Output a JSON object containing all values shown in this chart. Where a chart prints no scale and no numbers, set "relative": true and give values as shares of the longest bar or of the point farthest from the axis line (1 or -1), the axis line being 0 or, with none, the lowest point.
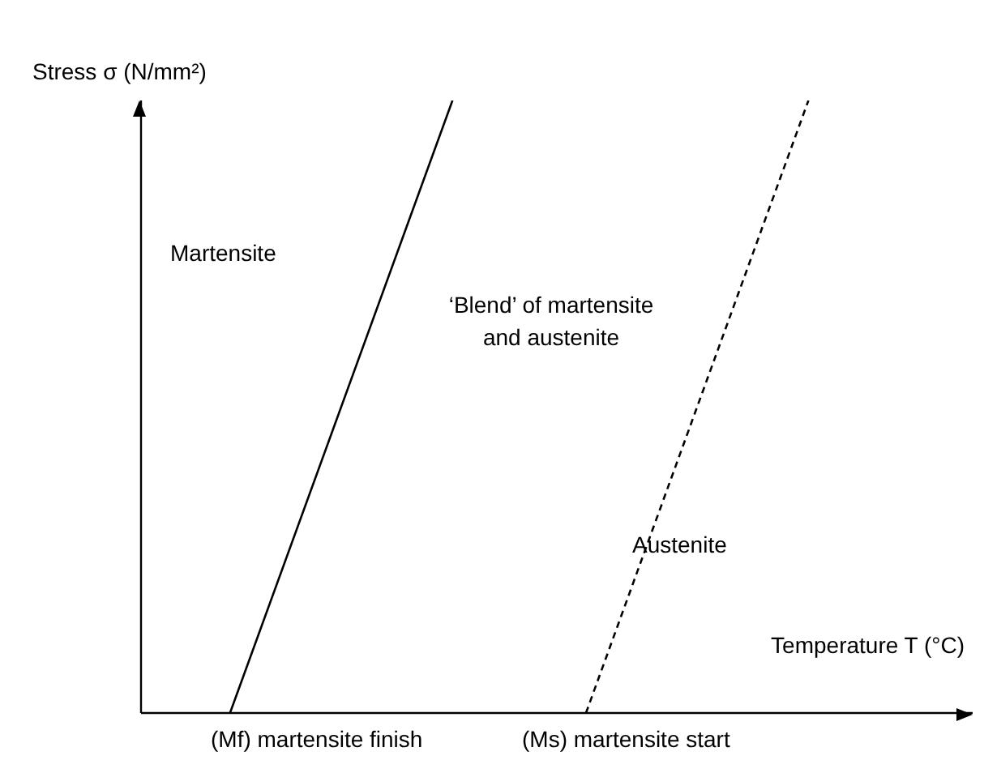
{
  "chart_data": {
    "type": "line",
    "relative": true,
    "xlabel": "Temperature T (°C)",
    "ylabel": "Stress σ (N/mm²)",
    "categories": [
      null,
      null,
      null,
      null,
      null,
      null,
      null,
      null,
      null,
      null,
      null,
      null,
      null,
      null,
      null,
      null,
      null,
      null,
      null
    ],
    "series": [
      {
        "color": "#000000",
        "line_style": "solid",
        "values": [
          null,
          null,
          0,
          null,
          null,
          null,
          null,
          1,
          null,
          null,
          null,
          null,
          null,
          null,
          null,
          null,
          null,
          null,
          null
        ]
      },
      {
        "color": "#000000",
        "line_style": "dashed",
        "values": [
          null,
          null,
          null,
          null,
          null,
          null,
          null,
          null,
          null,
          null,
          0,
          null,
          null,
          null,
          null,
          1,
          null,
          null,
          null
        ]
      }
    ],
    "marker": "none",
    "annotations": [
      "Martensite",
      "‘Blend’ of martensite and austenite",
      "Austenite",
      "(Mf) martensite finish",
      "(Ms) martensite start"
    ]
  }
}
